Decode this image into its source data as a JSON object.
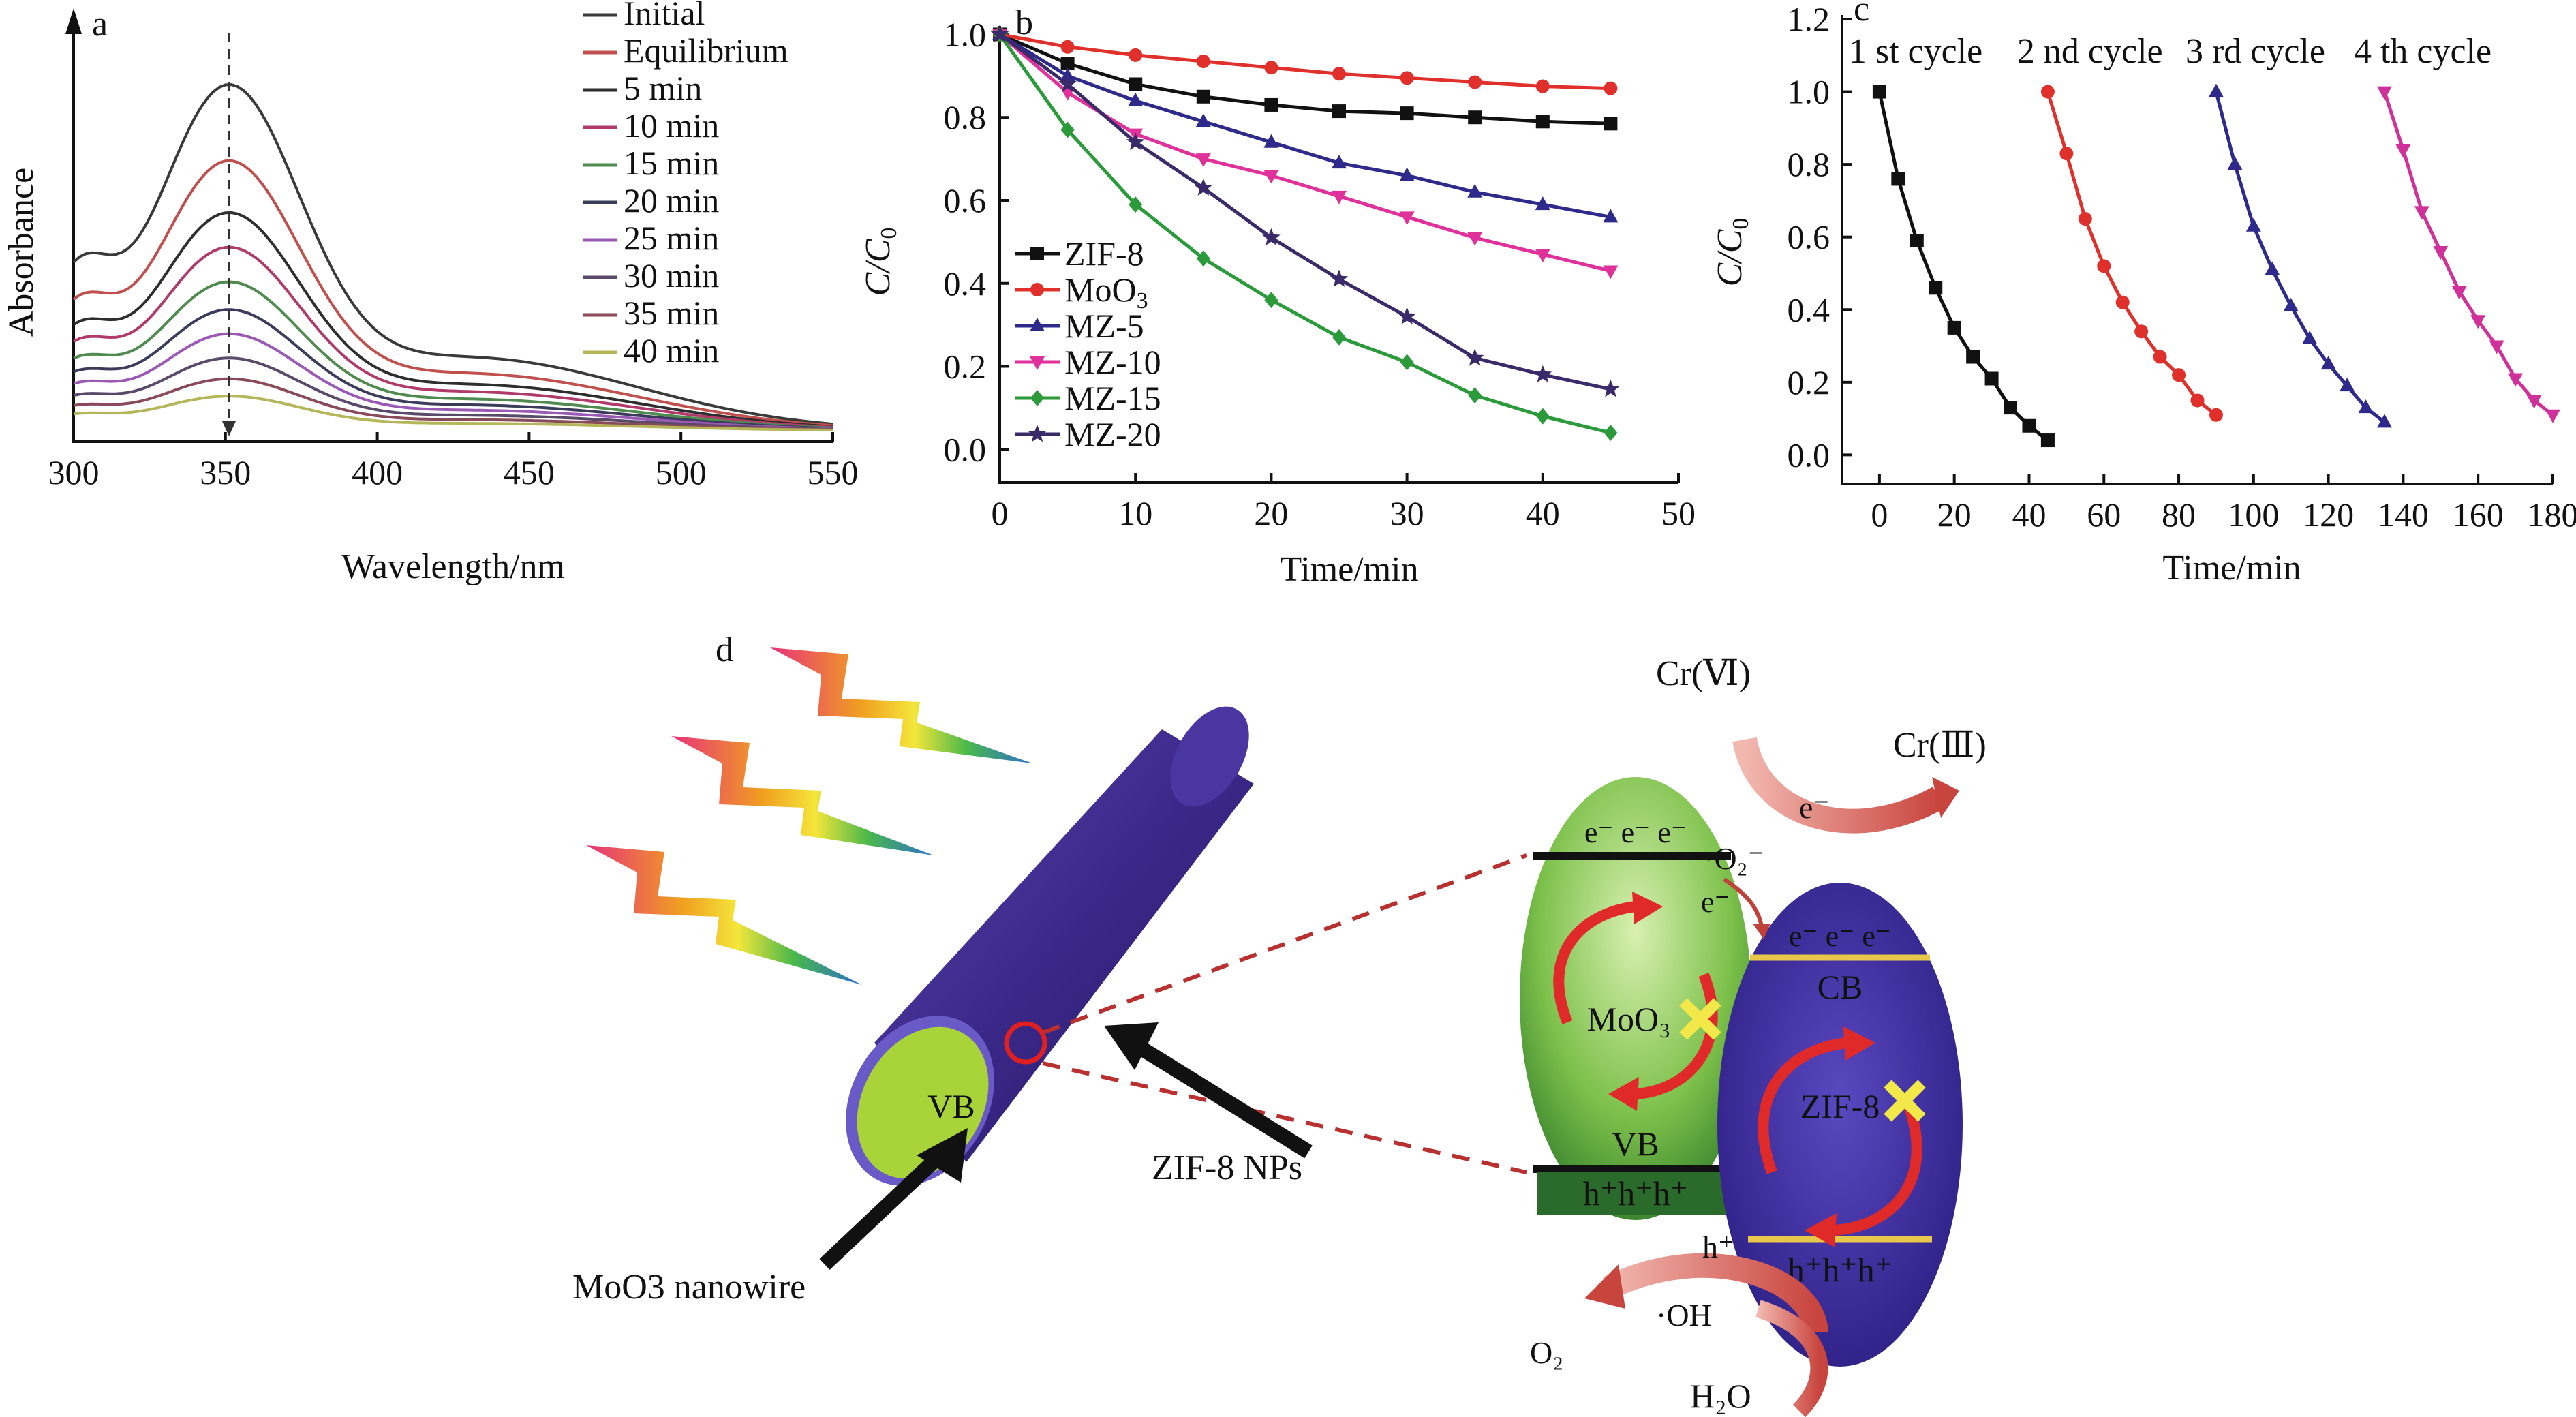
{
  "panels": {
    "a": "a",
    "b": "b",
    "c": "c",
    "d": "d"
  },
  "chart_data": [
    {
      "panel": "a",
      "type": "line",
      "title": "",
      "xlabel": "Wavelength/nm",
      "ylabel": "Absorbance",
      "xlim": [
        300,
        550
      ],
      "ylim": [
        0,
        1.1
      ],
      "x_ticks": [
        "300",
        "350",
        "400",
        "450",
        "500",
        "550"
      ],
      "x": [
        300,
        305,
        310,
        320,
        330,
        340,
        350,
        360,
        370,
        380,
        390,
        400,
        420,
        440,
        460,
        470,
        480,
        500,
        520,
        550
      ],
      "series": [
        {
          "name": "Initial",
          "color": "#3a3a3a",
          "peak": 1.0
        },
        {
          "name": "Equilibrium",
          "color": "#c0504d",
          "peak": 0.78
        },
        {
          "name": "5 min",
          "color": "#2e2e2e",
          "peak": 0.63
        },
        {
          "name": "10 min",
          "color": "#b03a6a",
          "peak": 0.53
        },
        {
          "name": "15 min",
          "color": "#4f8a4f",
          "peak": 0.43
        },
        {
          "name": "20 min",
          "color": "#3b3b5c",
          "peak": 0.35
        },
        {
          "name": "25 min",
          "color": "#9b59b6",
          "peak": 0.28
        },
        {
          "name": "30 min",
          "color": "#5a4a6a",
          "peak": 0.21
        },
        {
          "name": "35 min",
          "color": "#8a4a5a",
          "peak": 0.15
        },
        {
          "name": "40 min",
          "color": "#b5b55a",
          "peak": 0.1
        }
      ],
      "legend": "top-right",
      "annotation": "dashed arrow at 350 nm indicating decreasing absorbance"
    },
    {
      "panel": "b",
      "type": "line",
      "title": "",
      "xlabel": "Time/min",
      "ylabel": "C/C0",
      "xlim": [
        0,
        50
      ],
      "ylim": [
        -0.08,
        1.05
      ],
      "x_ticks": [
        "0",
        "10",
        "20",
        "30",
        "40",
        "50"
      ],
      "y_ticks": [
        "0.0",
        "0.2",
        "0.4",
        "0.6",
        "0.8",
        "1.0"
      ],
      "x": [
        0,
        5,
        10,
        15,
        20,
        25,
        30,
        35,
        40,
        45
      ],
      "series": [
        {
          "name": "ZIF-8",
          "color": "#111111",
          "marker": "square",
          "values": [
            1.0,
            0.93,
            0.88,
            0.85,
            0.83,
            0.815,
            0.81,
            0.8,
            0.79,
            0.785
          ]
        },
        {
          "name": "MoO3",
          "color": "#e0302c",
          "marker": "circle",
          "values": [
            1.0,
            0.97,
            0.95,
            0.935,
            0.92,
            0.905,
            0.895,
            0.885,
            0.875,
            0.87
          ]
        },
        {
          "name": "MZ-5",
          "color": "#2e2a8c",
          "marker": "triangle-up",
          "values": [
            1.0,
            0.9,
            0.84,
            0.79,
            0.74,
            0.69,
            0.66,
            0.62,
            0.59,
            0.56
          ]
        },
        {
          "name": "MZ-10",
          "color": "#e0309a",
          "marker": "triangle-down",
          "values": [
            1.0,
            0.86,
            0.76,
            0.7,
            0.66,
            0.61,
            0.56,
            0.51,
            0.47,
            0.43
          ]
        },
        {
          "name": "MZ-15",
          "color": "#2a9a3a",
          "marker": "diamond",
          "values": [
            1.0,
            0.77,
            0.59,
            0.46,
            0.36,
            0.27,
            0.21,
            0.13,
            0.08,
            0.04
          ]
        },
        {
          "name": "MZ-20",
          "color": "#3a2a6a",
          "marker": "star",
          "values": [
            1.0,
            0.88,
            0.74,
            0.63,
            0.51,
            0.41,
            0.32,
            0.22,
            0.18,
            0.145
          ]
        }
      ],
      "legend": "bottom-left"
    },
    {
      "panel": "c",
      "type": "line",
      "title": "",
      "xlabel": "Time/min",
      "ylabel": "C/C0",
      "xlim": [
        -10,
        180
      ],
      "ylim": [
        -0.08,
        1.2
      ],
      "x_ticks": [
        "0",
        "20",
        "40",
        "60",
        "80",
        "100",
        "120",
        "140",
        "160",
        "180"
      ],
      "y_ticks": [
        "0.0",
        "0.2",
        "0.4",
        "0.6",
        "0.8",
        "1.0",
        "1.2"
      ],
      "series": [
        {
          "name": "1 st cycle",
          "color": "#111111",
          "marker": "square",
          "x": [
            0,
            5,
            10,
            15,
            20,
            25,
            30,
            35,
            40,
            45
          ],
          "values": [
            1.0,
            0.76,
            0.59,
            0.46,
            0.35,
            0.27,
            0.21,
            0.13,
            0.08,
            0.04
          ]
        },
        {
          "name": "2 nd cycle",
          "color": "#e0302c",
          "marker": "circle",
          "x": [
            45,
            50,
            55,
            60,
            65,
            70,
            75,
            80,
            85,
            90
          ],
          "values": [
            1.0,
            0.83,
            0.65,
            0.52,
            0.42,
            0.34,
            0.27,
            0.22,
            0.15,
            0.11
          ]
        },
        {
          "name": "3 rd cycle",
          "color": "#2e2a8c",
          "marker": "triangle-up",
          "x": [
            90,
            95,
            100,
            105,
            110,
            115,
            120,
            125,
            130,
            135
          ],
          "values": [
            1.0,
            0.8,
            0.63,
            0.51,
            0.41,
            0.32,
            0.25,
            0.19,
            0.13,
            0.09
          ]
        },
        {
          "name": "4 th cycle",
          "color": "#d0309a",
          "marker": "triangle-down",
          "x": [
            135,
            140,
            145,
            150,
            155,
            160,
            165,
            170,
            175,
            180
          ],
          "values": [
            1.0,
            0.84,
            0.67,
            0.56,
            0.45,
            0.37,
            0.3,
            0.21,
            0.15,
            0.11
          ]
        }
      ],
      "legend": "none"
    }
  ],
  "diagram_d": {
    "wire_label_vb": "VB",
    "arrow_label_nps": "ZIF-8 NPs",
    "arrow_label_wire": "MoO3 nanowire",
    "moo3": {
      "top": "e⁻ e⁻ e⁻",
      "center": "MoO₃",
      "vb": "VB",
      "bottom": "h⁺h⁺h⁺"
    },
    "zif": {
      "top": "e⁻ e⁻ e⁻",
      "cb": "CB",
      "center": "ZIF-8",
      "bottom": "h⁺h⁺h⁺"
    },
    "cr6": "Cr(Ⅵ)",
    "cr3": "Cr(Ⅲ)",
    "electron": "e⁻",
    "superoxide": "·O₂⁻",
    "electron_transfer": "e⁻",
    "hole": "h⁺",
    "hydroxyl": "·OH",
    "o2": "O₂",
    "h2o": "H₂O",
    "colors": {
      "nanowire": "#3d2a8a",
      "nanowire_face": "#a8d43a",
      "moo3": "#8fcf5a",
      "zif": "#3b2a90",
      "arrow": "#d9534f"
    }
  }
}
